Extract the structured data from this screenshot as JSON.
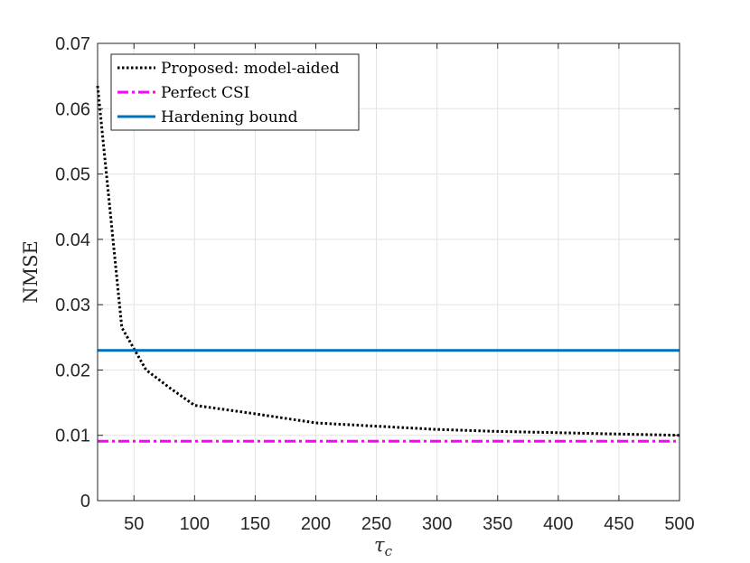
{
  "chart_data": {
    "type": "line",
    "xlabel": "τ",
    "xlabel_sub": "c",
    "ylabel": "NMSE",
    "xlim": [
      20,
      500
    ],
    "ylim": [
      0,
      0.07
    ],
    "x_ticks": [
      50,
      100,
      150,
      200,
      250,
      300,
      350,
      400,
      450,
      500
    ],
    "x_tick_labels": [
      "50",
      "100",
      "150",
      "200",
      "250",
      "300",
      "350",
      "400",
      "450",
      "500"
    ],
    "y_ticks": [
      0,
      0.01,
      0.02,
      0.03,
      0.04,
      0.05,
      0.06,
      0.07
    ],
    "y_tick_labels": [
      "0",
      "0.01",
      "0.02",
      "0.03",
      "0.04",
      "0.05",
      "0.06",
      "0.07"
    ],
    "grid": true,
    "legend_position": "top-left",
    "series": [
      {
        "name": "Proposed: model-aided",
        "color": "#000000",
        "style": "dotted",
        "x": [
          20,
          40,
          60,
          80,
          100,
          150,
          200,
          250,
          300,
          350,
          400,
          450,
          500
        ],
        "y": [
          0.0635,
          0.0265,
          0.02,
          0.0172,
          0.0146,
          0.0133,
          0.0119,
          0.0114,
          0.0109,
          0.0106,
          0.0104,
          0.0102,
          0.01
        ]
      },
      {
        "name": "Perfect CSI",
        "color": "#ff00ff",
        "style": "dashdot",
        "x": [
          20,
          500
        ],
        "y": [
          0.0091,
          0.0091
        ]
      },
      {
        "name": "Hardening bound",
        "color": "#0072bd",
        "style": "solid",
        "x": [
          20,
          500
        ],
        "y": [
          0.023,
          0.023
        ]
      }
    ]
  }
}
